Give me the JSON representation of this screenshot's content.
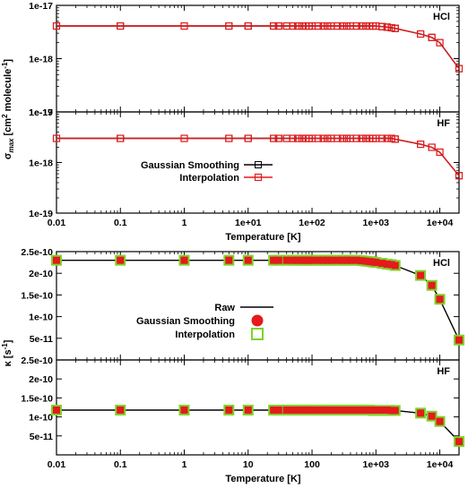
{
  "colors": {
    "black": "#000000",
    "red": "#e41a1c",
    "green": "#7fd22b"
  },
  "chart_data": [
    {
      "type": "line",
      "xlabel": "Temperature [K]",
      "ylabel_main": "σ",
      "ylabel_sub": "max",
      "ylabel_rest": " [cm",
      "ylabel_sup": "2",
      "ylabel_rest2": " molecule",
      "ylabel_sup2": "-1",
      "ylabel_end": "]",
      "xscale": "log",
      "yscale": "log",
      "xlim": [
        0.01,
        20000
      ],
      "x_ticks": [
        0.01,
        0.1,
        1,
        10,
        100,
        1000,
        10000
      ],
      "x_tick_labels": [
        "0.01",
        "0.1",
        "1",
        "1e+01",
        "1e+02",
        "1e+03",
        "1e+04"
      ],
      "legend": {
        "entries": [
          "Gaussian Smoothing",
          "Interpolation"
        ],
        "position": "lower-left of HF panel"
      },
      "x": [
        0.01,
        0.1,
        1,
        5,
        10,
        25,
        30,
        40,
        50,
        60,
        70,
        80,
        90,
        100,
        125,
        150,
        175,
        200,
        250,
        300,
        350,
        400,
        500,
        600,
        700,
        800,
        900,
        1000,
        1250,
        1500,
        1750,
        2000,
        5000,
        7500,
        10000,
        20000
      ],
      "panels": [
        {
          "tag": "HCl",
          "ylim": [
            1e-19,
            1e-17
          ],
          "y_ticks": [
            1e-19,
            1e-18,
            1e-17
          ],
          "y_tick_labels": [
            "1e-19",
            "1e-18",
            "1e-17"
          ],
          "series": [
            {
              "name": "Gaussian Smoothing",
              "values": [
                4.1e-18,
                4.1e-18,
                4.1e-18,
                4.1e-18,
                4.1e-18,
                4.1e-18,
                4.1e-18,
                4.1e-18,
                4.1e-18,
                4.1e-18,
                4.1e-18,
                4.1e-18,
                4.1e-18,
                4.1e-18,
                4.1e-18,
                4.1e-18,
                4.1e-18,
                4.1e-18,
                4.1e-18,
                4.1e-18,
                4.1e-18,
                4.1e-18,
                4.1e-18,
                4.1e-18,
                4.1e-18,
                4.1e-18,
                4.1e-18,
                4.1e-18,
                4e-18,
                3.9e-18,
                3.8e-18,
                3.7e-18,
                2.9e-18,
                2.5e-18,
                2e-18,
                6.5e-19
              ]
            },
            {
              "name": "Interpolation",
              "values": [
                4.1e-18,
                4.1e-18,
                4.1e-18,
                4.1e-18,
                4.1e-18,
                4.1e-18,
                4.1e-18,
                4.1e-18,
                4.1e-18,
                4.1e-18,
                4.1e-18,
                4.1e-18,
                4.1e-18,
                4.1e-18,
                4.1e-18,
                4.1e-18,
                4.1e-18,
                4.1e-18,
                4.1e-18,
                4.1e-18,
                4.1e-18,
                4.1e-18,
                4.1e-18,
                4.1e-18,
                4.1e-18,
                4.1e-18,
                4.1e-18,
                4.1e-18,
                4e-18,
                3.9e-18,
                3.8e-18,
                3.7e-18,
                2.9e-18,
                2.5e-18,
                2e-18,
                6.5e-19
              ]
            }
          ]
        },
        {
          "tag": "HF",
          "ylim": [
            1e-19,
            1e-17
          ],
          "y_ticks": [
            1e-19,
            1e-18,
            1e-17
          ],
          "y_tick_labels": [
            "1e-19",
            "1e-18",
            "1e-17"
          ],
          "series": [
            {
              "name": "Gaussian Smoothing",
              "values": [
                3e-18,
                3e-18,
                3e-18,
                3e-18,
                3e-18,
                3e-18,
                3e-18,
                3e-18,
                3e-18,
                3e-18,
                3e-18,
                3e-18,
                3e-18,
                3e-18,
                3e-18,
                3e-18,
                3e-18,
                3e-18,
                3e-18,
                3e-18,
                3e-18,
                3e-18,
                3e-18,
                3e-18,
                3e-18,
                3e-18,
                3e-18,
                3e-18,
                3e-18,
                3e-18,
                3e-18,
                2.9e-18,
                2.3e-18,
                2e-18,
                1.6e-18,
                5.5e-19
              ]
            },
            {
              "name": "Interpolation",
              "values": [
                3e-18,
                3e-18,
                3e-18,
                3e-18,
                3e-18,
                3e-18,
                3e-18,
                3e-18,
                3e-18,
                3e-18,
                3e-18,
                3e-18,
                3e-18,
                3e-18,
                3e-18,
                3e-18,
                3e-18,
                3e-18,
                3e-18,
                3e-18,
                3e-18,
                3e-18,
                3e-18,
                3e-18,
                3e-18,
                3e-18,
                3e-18,
                3e-18,
                3e-18,
                3e-18,
                3e-18,
                2.9e-18,
                2.3e-18,
                2e-18,
                1.6e-18,
                5.5e-19
              ]
            }
          ]
        }
      ]
    },
    {
      "type": "line",
      "xlabel": "Temperature [K]",
      "ylabel_main": "κ [s",
      "ylabel_sup": "-1",
      "ylabel_end": "]",
      "xscale": "log",
      "yscale": "linear",
      "xlim": [
        0.01,
        20000
      ],
      "x_ticks": [
        0.01,
        0.1,
        1,
        10,
        100,
        1000,
        10000
      ],
      "x_tick_labels": [
        "0.01",
        "0.1",
        "1",
        "10",
        "100",
        "1e+03",
        "1e+04"
      ],
      "legend": {
        "entries": [
          "Raw",
          "Gaussian Smoothing",
          "Interpolation"
        ],
        "position": "middle of HCl panel"
      },
      "x": [
        0.01,
        0.1,
        1,
        5,
        10,
        25,
        30,
        40,
        50,
        60,
        70,
        80,
        90,
        100,
        125,
        150,
        175,
        200,
        250,
        300,
        350,
        400,
        500,
        600,
        700,
        800,
        900,
        1000,
        1250,
        1500,
        1750,
        2000,
        5000,
        7500,
        10000,
        20000
      ],
      "panels": [
        {
          "tag": "HCl",
          "ylim": [
            0,
            2.5e-10
          ],
          "y_ticks": [
            5e-11,
            1e-10,
            1.5e-10,
            2e-10,
            2.5e-10
          ],
          "y_tick_labels": [
            "5e-11",
            "1e-10",
            "1.5e-10",
            "2e-10",
            "2.5e-10"
          ],
          "series": [
            {
              "name": "Raw",
              "values": [
                2.3e-10,
                2.3e-10,
                2.3e-10,
                2.3e-10,
                2.3e-10,
                2.3e-10,
                2.3e-10,
                2.3e-10,
                2.3e-10,
                2.3e-10,
                2.3e-10,
                2.3e-10,
                2.3e-10,
                2.3e-10,
                2.3e-10,
                2.3e-10,
                2.3e-10,
                2.3e-10,
                2.3e-10,
                2.3e-10,
                2.3e-10,
                2.3e-10,
                2.3e-10,
                2.29e-10,
                2.28e-10,
                2.27e-10,
                2.26e-10,
                2.25e-10,
                2.23e-10,
                2.21e-10,
                2.2e-10,
                2.18e-10,
                1.95e-10,
                1.72e-10,
                1.4e-10,
                4.6e-11
              ]
            },
            {
              "name": "Gaussian Smoothing",
              "values": [
                2.3e-10,
                2.3e-10,
                2.3e-10,
                2.3e-10,
                2.3e-10,
                2.3e-10,
                2.3e-10,
                2.3e-10,
                2.3e-10,
                2.3e-10,
                2.3e-10,
                2.3e-10,
                2.3e-10,
                2.3e-10,
                2.3e-10,
                2.3e-10,
                2.3e-10,
                2.3e-10,
                2.3e-10,
                2.3e-10,
                2.3e-10,
                2.3e-10,
                2.3e-10,
                2.29e-10,
                2.28e-10,
                2.27e-10,
                2.26e-10,
                2.25e-10,
                2.23e-10,
                2.21e-10,
                2.2e-10,
                2.18e-10,
                1.95e-10,
                1.72e-10,
                1.4e-10,
                4.6e-11
              ]
            },
            {
              "name": "Interpolation",
              "values": [
                2.3e-10,
                2.3e-10,
                2.3e-10,
                2.3e-10,
                2.3e-10,
                2.3e-10,
                2.3e-10,
                2.3e-10,
                2.3e-10,
                2.3e-10,
                2.3e-10,
                2.3e-10,
                2.3e-10,
                2.3e-10,
                2.3e-10,
                2.3e-10,
                2.3e-10,
                2.3e-10,
                2.3e-10,
                2.3e-10,
                2.3e-10,
                2.3e-10,
                2.3e-10,
                2.29e-10,
                2.28e-10,
                2.27e-10,
                2.26e-10,
                2.25e-10,
                2.23e-10,
                2.21e-10,
                2.2e-10,
                2.18e-10,
                1.95e-10,
                1.72e-10,
                1.4e-10,
                4.6e-11
              ]
            }
          ]
        },
        {
          "tag": "HF",
          "ylim": [
            0,
            2.5e-10
          ],
          "y_ticks": [
            5e-11,
            1e-10,
            1.5e-10,
            2e-10,
            2.5e-10
          ],
          "y_tick_labels": [
            "5e-11",
            "1e-10",
            "1.5e-10",
            "2e-10",
            "2.5e-10"
          ],
          "series": [
            {
              "name": "Raw",
              "values": [
                1.18e-10,
                1.18e-10,
                1.18e-10,
                1.18e-10,
                1.18e-10,
                1.18e-10,
                1.18e-10,
                1.18e-10,
                1.18e-10,
                1.18e-10,
                1.18e-10,
                1.18e-10,
                1.18e-10,
                1.18e-10,
                1.18e-10,
                1.18e-10,
                1.18e-10,
                1.18e-10,
                1.18e-10,
                1.18e-10,
                1.18e-10,
                1.18e-10,
                1.18e-10,
                1.18e-10,
                1.18e-10,
                1.18e-10,
                1.18e-10,
                1.18e-10,
                1.18e-10,
                1.18e-10,
                1.17e-10,
                1.17e-10,
                1.1e-10,
                1.02e-10,
                8.8e-11,
                3.5e-11
              ]
            },
            {
              "name": "Gaussian Smoothing",
              "values": [
                1.18e-10,
                1.18e-10,
                1.18e-10,
                1.18e-10,
                1.18e-10,
                1.18e-10,
                1.18e-10,
                1.18e-10,
                1.18e-10,
                1.18e-10,
                1.18e-10,
                1.18e-10,
                1.18e-10,
                1.18e-10,
                1.18e-10,
                1.18e-10,
                1.18e-10,
                1.18e-10,
                1.18e-10,
                1.18e-10,
                1.18e-10,
                1.18e-10,
                1.18e-10,
                1.18e-10,
                1.18e-10,
                1.18e-10,
                1.18e-10,
                1.18e-10,
                1.18e-10,
                1.18e-10,
                1.17e-10,
                1.17e-10,
                1.1e-10,
                1.02e-10,
                8.8e-11,
                3.5e-11
              ]
            },
            {
              "name": "Interpolation",
              "values": [
                1.18e-10,
                1.18e-10,
                1.18e-10,
                1.18e-10,
                1.18e-10,
                1.18e-10,
                1.18e-10,
                1.18e-10,
                1.18e-10,
                1.18e-10,
                1.18e-10,
                1.18e-10,
                1.18e-10,
                1.18e-10,
                1.18e-10,
                1.18e-10,
                1.18e-10,
                1.18e-10,
                1.18e-10,
                1.18e-10,
                1.18e-10,
                1.18e-10,
                1.18e-10,
                1.18e-10,
                1.18e-10,
                1.18e-10,
                1.17e-10,
                1.17e-10,
                1.17e-10,
                1.17e-10,
                1.17e-10,
                1.17e-10,
                1.1e-10,
                1.02e-10,
                8.8e-11,
                3.5e-11
              ]
            }
          ]
        }
      ]
    }
  ]
}
